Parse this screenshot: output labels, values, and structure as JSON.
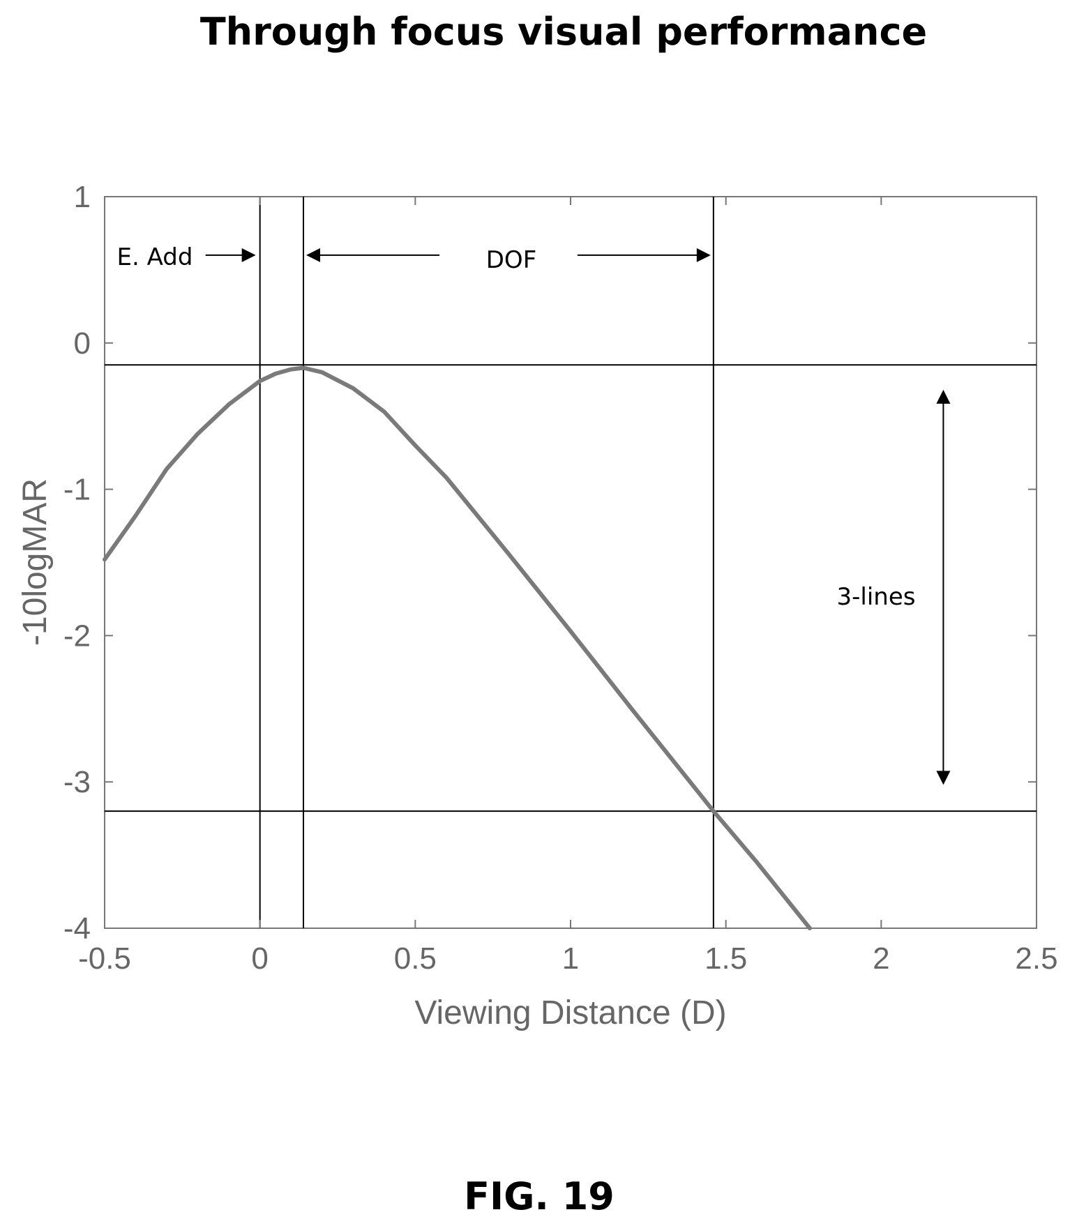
{
  "title": "Through focus visual performance",
  "figure_label": "FIG. 19",
  "chart_data": {
    "type": "line",
    "title": "Through focus visual performance",
    "xlabel": "Viewing Distance (D)",
    "ylabel": "-10logMAR",
    "xlim": [
      -0.5,
      2.5
    ],
    "ylim": [
      -4,
      1
    ],
    "x_ticks": [
      -0.5,
      0,
      0.5,
      1,
      1.5,
      2,
      2.5
    ],
    "x_tick_labels": [
      "-0.5",
      "0",
      "0.5",
      "1",
      "1.5",
      "2",
      "2.5"
    ],
    "y_ticks": [
      1,
      0,
      -1,
      -2,
      -3,
      -4
    ],
    "y_tick_labels": [
      "1",
      "0",
      "-1",
      "-2",
      "-3",
      "-4"
    ],
    "grid": false,
    "series": [
      {
        "color": "#7a7a7a",
        "x": [
          -0.5,
          -0.4,
          -0.3,
          -0.2,
          -0.1,
          0.0,
          0.05,
          0.1,
          0.14,
          0.2,
          0.3,
          0.4,
          0.5,
          0.6,
          0.8,
          1.0,
          1.2,
          1.4,
          1.46,
          1.6,
          1.77
        ],
        "y": [
          -1.48,
          -1.18,
          -0.86,
          -0.62,
          -0.42,
          -0.26,
          -0.21,
          -0.18,
          -0.17,
          -0.2,
          -0.31,
          -0.47,
          -0.7,
          -0.92,
          -1.44,
          -1.97,
          -2.51,
          -3.04,
          -3.2,
          -3.55,
          -4.0
        ]
      }
    ],
    "reference_lines": {
      "vertical_x": [
        0,
        0.14,
        1.46
      ],
      "horizontal_y": [
        -0.15,
        -3.2
      ]
    },
    "annotations": {
      "e_add": "E. Add",
      "dof": "DOF",
      "three_lines": "3-lines"
    }
  }
}
